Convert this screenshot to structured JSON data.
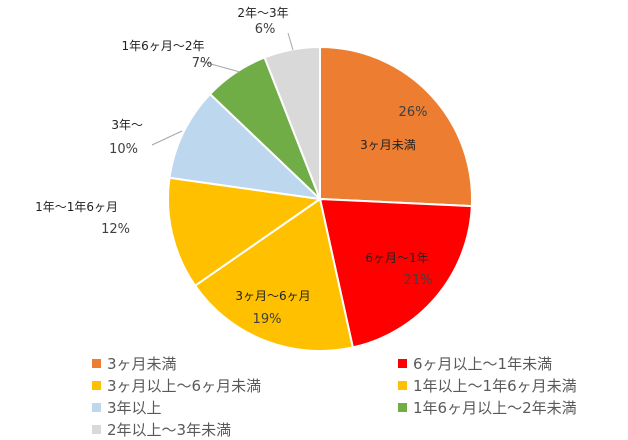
{
  "chart_data": {
    "type": "pie",
    "slices": [
      {
        "name": "3ヶ月未満",
        "label": "3ヶ月未満",
        "value": 26,
        "pct_text": "26%",
        "color": "#ED7D31"
      },
      {
        "name": "6ヶ月以上〜1年未満",
        "label": "6ヶ月〜1年",
        "value": 21,
        "pct_text": "21%",
        "color": "#FF0000"
      },
      {
        "name": "3ヶ月以上〜6ヶ月未満",
        "label": "3ヶ月〜6ヶ月",
        "value": 19,
        "pct_text": "19%",
        "color": "#FFC000"
      },
      {
        "name": "1年以上〜1年6ヶ月未満",
        "label": "1年〜1年6ヶ月",
        "value": 12,
        "pct_text": "12%",
        "color": "#FFC000"
      },
      {
        "name": "3年以上",
        "label": "3年〜",
        "value": 10,
        "pct_text": "10%",
        "color": "#BDD7EE"
      },
      {
        "name": "1年6ヶ月以上〜2年未満",
        "label": "1年6ヶ月〜2年",
        "value": 7,
        "pct_text": "7%",
        "color": "#70AD47"
      },
      {
        "name": "2年以上〜3年未満",
        "label": "2年〜3年",
        "value": 6,
        "pct_text": "6%",
        "color": "#D9D9D9"
      }
    ],
    "legend": {
      "placement": "bottom",
      "items": [
        {
          "label": "3ヶ月未満",
          "color": "#ED7D31"
        },
        {
          "label": "6ヶ月以上〜1年未満",
          "color": "#FF0000"
        },
        {
          "label": "3ヶ月以上〜6ヶ月未満",
          "color": "#FFC000"
        },
        {
          "label": "1年以上〜1年6ヶ月未満",
          "color": "#FFC000"
        },
        {
          "label": "3年以上",
          "color": "#BDD7EE"
        },
        {
          "label": "1年6ヶ月以上〜2年未満",
          "color": "#70AD47"
        },
        {
          "label": "2年以上〜3年未満",
          "color": "#D9D9D9"
        }
      ]
    }
  }
}
